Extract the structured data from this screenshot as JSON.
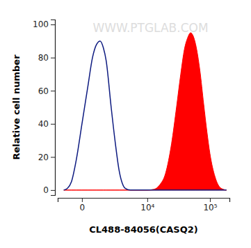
{
  "chart_data": {
    "type": "area",
    "x_label": "CL488-84056(CASQ2)",
    "y_label": "Relative cell number",
    "annotations": [
      "WWW.PTGLAB.COM"
    ],
    "log": "x",
    "x": [
      -1000,
      -750,
      -500,
      -250,
      0,
      250,
      500,
      750,
      1000,
      1250,
      1500,
      2000,
      2500,
      3000,
      3500,
      4000,
      5000,
      7000,
      10000,
      13000,
      16000,
      20000,
      25000,
      30000,
      35000,
      40000,
      45000,
      50000,
      55000,
      60000,
      70000,
      80000,
      90000,
      100000,
      120000,
      140000,
      160000,
      180000
    ],
    "series": [
      {
        "type": "line",
        "color": "#0d1a80",
        "values": [
          0,
          1,
          5,
          18,
          40,
          62,
          80,
          88,
          90,
          86,
          78,
          50,
          28,
          12,
          4,
          1,
          0,
          0,
          0,
          0,
          0,
          0,
          0,
          0,
          0,
          0,
          0,
          0,
          0,
          0,
          0,
          0,
          0,
          0,
          0,
          0,
          0,
          0
        ]
      },
      {
        "type": "area",
        "color": "#ff0000",
        "values": [
          0,
          0,
          0,
          0,
          0,
          0,
          0,
          0,
          0,
          0,
          0,
          0,
          0,
          0,
          0,
          0,
          0,
          0,
          0,
          0.5,
          3,
          10,
          28,
          50,
          70,
          85,
          92,
          95,
          93,
          88,
          72,
          52,
          35,
          22,
          8,
          2,
          0.5,
          0
        ]
      }
    ],
    "xlim": [
      -1500,
      200000
    ],
    "ylim": [
      -3,
      103
    ],
    "xticks": [
      0,
      {
        "value": 10000,
        "label": "10⁴"
      },
      {
        "value": 100000,
        "label": "10⁵"
      }
    ],
    "yticks": [
      0,
      20,
      40,
      60,
      80,
      100
    ]
  }
}
